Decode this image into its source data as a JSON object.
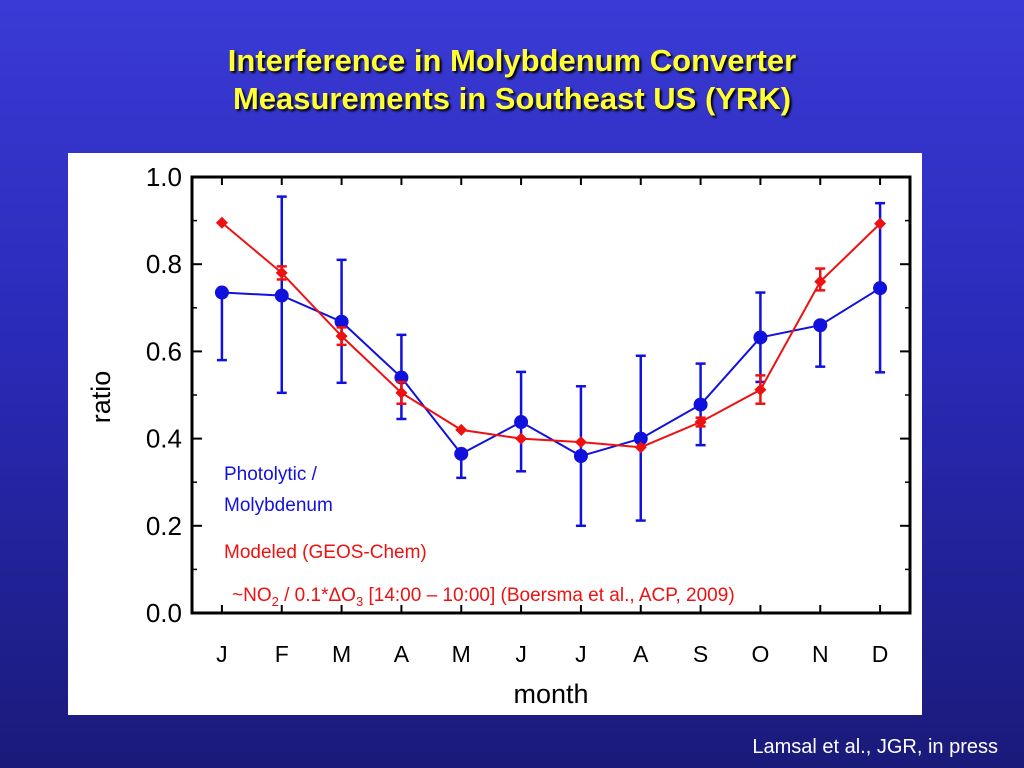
{
  "slide": {
    "title_line1": "Interference in Molybdenum Converter",
    "title_line2": "Measurements in Southeast US (YRK)",
    "credit": "Lamsal et al., JGR, in press"
  },
  "colors": {
    "photolytic": "#1111dd",
    "modeled": "#ee1111"
  },
  "chart_data": {
    "type": "line",
    "xlabel": "month",
    "ylabel": "ratio",
    "categories": [
      "J",
      "F",
      "M",
      "A",
      "M",
      "J",
      "J",
      "A",
      "S",
      "O",
      "N",
      "D"
    ],
    "ylim": [
      0,
      1.0
    ],
    "yticks": [
      "0.0",
      "0.2",
      "0.4",
      "0.6",
      "0.8",
      "1.0"
    ],
    "grid": false,
    "series": [
      {
        "name": "Photolytic / Molybdenum",
        "name_line1": "Photolytic /",
        "name_line2": "Molybdenum",
        "color": "#1111dd",
        "marker": "circle",
        "values": [
          0.735,
          0.728,
          0.668,
          0.54,
          0.365,
          0.438,
          0.36,
          0.4,
          0.478,
          0.632,
          0.66,
          0.745
        ],
        "err_low": [
          0.58,
          0.505,
          0.528,
          0.445,
          0.31,
          0.325,
          0.2,
          0.212,
          0.385,
          0.53,
          0.565,
          0.552
        ],
        "err_high": [
          0.735,
          0.955,
          0.81,
          0.638,
          0.365,
          0.553,
          0.52,
          0.59,
          0.572,
          0.735,
          0.66,
          0.94
        ]
      },
      {
        "name": "Modeled (GEOS-Chem)",
        "color": "#ee1111",
        "marker": "diamond",
        "values": [
          0.895,
          0.78,
          0.635,
          0.505,
          0.42,
          0.4,
          0.392,
          0.38,
          0.438,
          0.512,
          0.76,
          0.893
        ],
        "err_low": [
          0.895,
          0.765,
          0.615,
          0.48,
          0.42,
          0.4,
          0.392,
          0.38,
          0.428,
          0.48,
          0.74,
          0.893
        ],
        "err_high": [
          0.895,
          0.795,
          0.655,
          0.53,
          0.42,
          0.4,
          0.392,
          0.38,
          0.448,
          0.545,
          0.79,
          0.893
        ]
      }
    ],
    "annotation": {
      "prefix": "~NO",
      "sub1": "2",
      "mid": " / 0.1*ΔO",
      "sub2": "3",
      "suffix": " [14:00 – 10:00] (Boersma et al., ACP, 2009)"
    }
  }
}
